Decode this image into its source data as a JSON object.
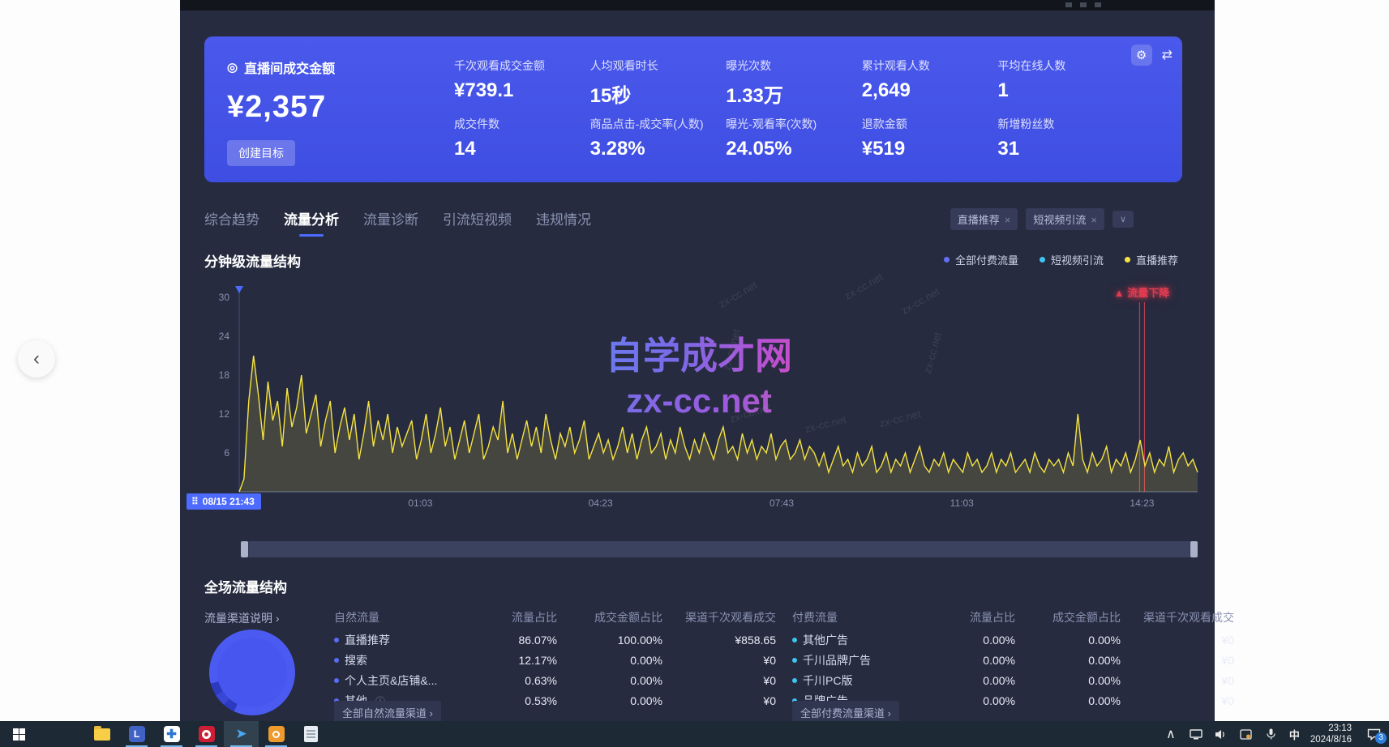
{
  "icons": {
    "back": "‹",
    "target": "◎",
    "gear": "⚙",
    "swap": "⇄",
    "close": "×",
    "chevron_down": "∨",
    "chevron_up": "∧",
    "arrow": "›",
    "drag": "⠿",
    "info": "ⓘ",
    "alert_tri": "▲",
    "cursor": "➤"
  },
  "colors": {
    "accent_blue": "#4d6bfe",
    "card_blue": "#4453e6",
    "paid_dot": "#6470f3",
    "video_dot": "#3ec6f0",
    "live_dot": "#f5e342",
    "alert_red": "#e23c50",
    "natural_dot": "#5a6cf3"
  },
  "stat_card": {
    "main_label": "直播间成交金额",
    "main_value": "¥2,357",
    "goal_button": "创建目标",
    "metrics": [
      {
        "label": "千次观看成交金额",
        "value": "¥739.1"
      },
      {
        "label": "人均观看时长",
        "value": "15秒"
      },
      {
        "label": "曝光次数",
        "value": "1.33万"
      },
      {
        "label": "累计观看人数",
        "value": "2,649"
      },
      {
        "label": "平均在线人数",
        "value": "1"
      },
      {
        "label": "成交件数",
        "value": "14"
      },
      {
        "label": "商品点击-成交率(人数)",
        "value": "3.28%"
      },
      {
        "label": "曝光-观看率(次数)",
        "value": "24.05%"
      },
      {
        "label": "退款金额",
        "value": "¥519"
      },
      {
        "label": "新增粉丝数",
        "value": "31"
      }
    ]
  },
  "tabs": [
    {
      "label": "综合趋势",
      "active": false
    },
    {
      "label": "流量分析",
      "active": true
    },
    {
      "label": "流量诊断",
      "active": false
    },
    {
      "label": "引流短视频",
      "active": false
    },
    {
      "label": "违规情况",
      "active": false
    }
  ],
  "filter_tags": [
    "直播推荐",
    "短视频引流"
  ],
  "chart_section": {
    "title": "分钟级流量结构"
  },
  "chart_data": {
    "type": "line",
    "title": "分钟级流量结构",
    "legend": [
      {
        "label": "全部付费流量",
        "color": "#6470f3"
      },
      {
        "label": "短视频引流",
        "color": "#3ec6f0"
      },
      {
        "label": "直播推荐",
        "color": "#f5e342"
      }
    ],
    "x_ticks": [
      "08/15 21:43",
      "01:03",
      "04:23",
      "07:43",
      "11:03",
      "14:23"
    ],
    "y_ticks": [
      0,
      6,
      12,
      18,
      24,
      30
    ],
    "ylim": [
      0,
      30
    ],
    "annotation": {
      "label": "流量下降",
      "x_fraction": 0.942
    },
    "series": [
      {
        "name": "直播推荐",
        "color": "#f5e342",
        "values": [
          0,
          2,
          14,
          21,
          15,
          8,
          17,
          11,
          14,
          7,
          16,
          10,
          13,
          18,
          9,
          12,
          15,
          7,
          11,
          14,
          6,
          10,
          13,
          8,
          12,
          5,
          9,
          14,
          7,
          11,
          8,
          12,
          6,
          10,
          7,
          9,
          11,
          5,
          8,
          12,
          6,
          9,
          13,
          7,
          10,
          5,
          8,
          11,
          6,
          9,
          12,
          5,
          7,
          10,
          8,
          14,
          6,
          9,
          5,
          8,
          11,
          7,
          10,
          6,
          12,
          8,
          5,
          9,
          7,
          10,
          6,
          8,
          11,
          5,
          7,
          9,
          6,
          8,
          5,
          7,
          10,
          6,
          9,
          5,
          8,
          10,
          6,
          7,
          9,
          5,
          8,
          6,
          10,
          7,
          5,
          8,
          6,
          9,
          7,
          5,
          8,
          10,
          6,
          7,
          5,
          9,
          6,
          8,
          5,
          7,
          6,
          9,
          5,
          7,
          8,
          5,
          6,
          8,
          5,
          7,
          6,
          4,
          6,
          3,
          5,
          7,
          4,
          5,
          3,
          6,
          4,
          5,
          7,
          3,
          4,
          6,
          3,
          5,
          4,
          6,
          3,
          5,
          7,
          4,
          3,
          5,
          4,
          6,
          3,
          5,
          4,
          3,
          6,
          4,
          5,
          3,
          4,
          6,
          3,
          5,
          4,
          6,
          3,
          4,
          5,
          3,
          6,
          4,
          3,
          5,
          4,
          5,
          3,
          6,
          4,
          12,
          5,
          3,
          6,
          4,
          5,
          7,
          3,
          5,
          4,
          6,
          3,
          5,
          8,
          4,
          6,
          3,
          5,
          4,
          7,
          3,
          5,
          6,
          4,
          5,
          3
        ]
      }
    ]
  },
  "watermark": {
    "line1": "自学成才网",
    "line2": "zx-cc.net",
    "scatter": "zx-cc.net"
  },
  "traffic_section": {
    "title": "全场流量结构",
    "channel_note": "流量渠道说明",
    "natural": {
      "header": [
        "自然流量",
        "流量占比",
        "成交金额占比",
        "渠道千次观看成交"
      ],
      "rows": [
        {
          "name": "直播推荐",
          "traffic": "86.07%",
          "gmv": "100.00%",
          "gpm": "¥858.65",
          "info": false
        },
        {
          "name": "搜索",
          "traffic": "12.17%",
          "gmv": "0.00%",
          "gpm": "¥0",
          "info": false
        },
        {
          "name": "个人主页&店铺&...",
          "traffic": "0.63%",
          "gmv": "0.00%",
          "gpm": "¥0",
          "info": false
        },
        {
          "name": "其他",
          "traffic": "0.53%",
          "gmv": "0.00%",
          "gpm": "¥0",
          "info": true
        }
      ],
      "footer": "全部自然流量渠道 ›"
    },
    "paid": {
      "header": [
        "付费流量",
        "流量占比",
        "成交金额占比",
        "渠道千次观看成交"
      ],
      "rows": [
        {
          "name": "其他广告",
          "traffic": "0.00%",
          "gmv": "0.00%",
          "gpm": "¥0",
          "info": false
        },
        {
          "name": "千川品牌广告",
          "traffic": "0.00%",
          "gmv": "0.00%",
          "gpm": "¥0",
          "info": false
        },
        {
          "name": "千川PC版",
          "traffic": "0.00%",
          "gmv": "0.00%",
          "gpm": "¥0",
          "info": false
        },
        {
          "name": "品牌广告",
          "traffic": "0.00%",
          "gmv": "0.00%",
          "gpm": "¥0",
          "info": false
        }
      ],
      "footer": "全部付费流量渠道 ›"
    }
  },
  "taskbar": {
    "time": "23:13",
    "date": "2024/8/16",
    "ime": "中",
    "badge": "3"
  }
}
